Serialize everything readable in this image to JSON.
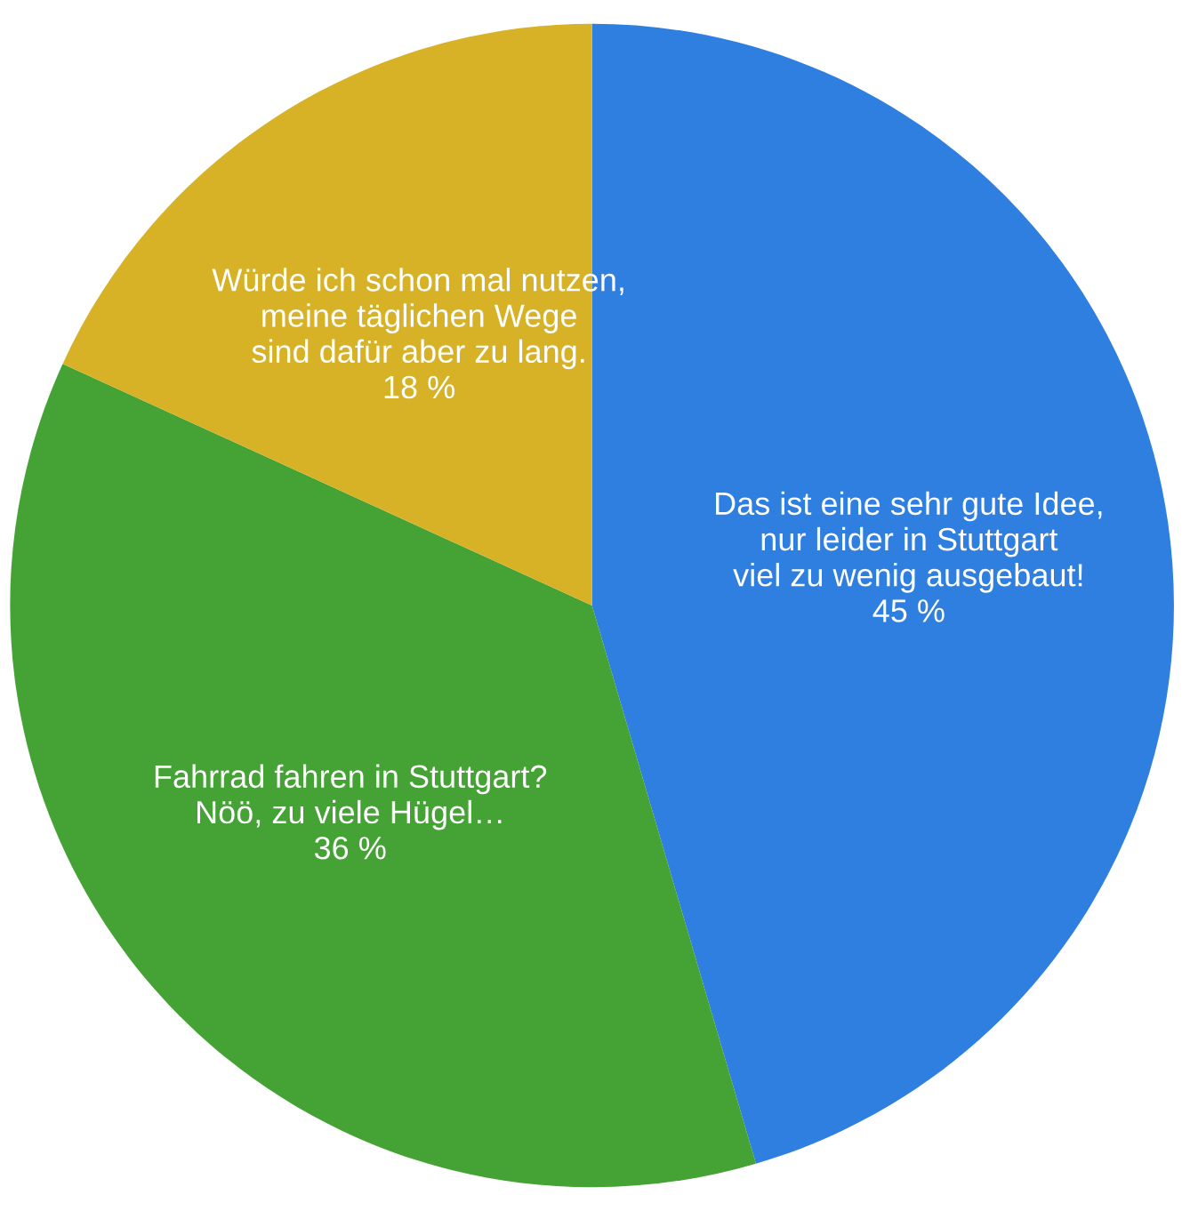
{
  "chart_data": {
    "type": "pie",
    "categories": [
      "Das ist eine sehr gute Idee,\nnur leider in Stuttgart\nviel zu wenig ausgebaut!",
      "Fahrrad fahren in Stuttgart?\nNöö, zu viele Hügel…",
      "Würde ich schon mal nutzen,\nmeine täglichen Wege\nsind dafür aber zu lang."
    ],
    "values": [
      45,
      36,
      18
    ],
    "value_labels": [
      "45 %",
      "36 %",
      "18 %"
    ],
    "colors": [
      "#2f7fe0",
      "#45a235",
      "#d8b226"
    ]
  }
}
